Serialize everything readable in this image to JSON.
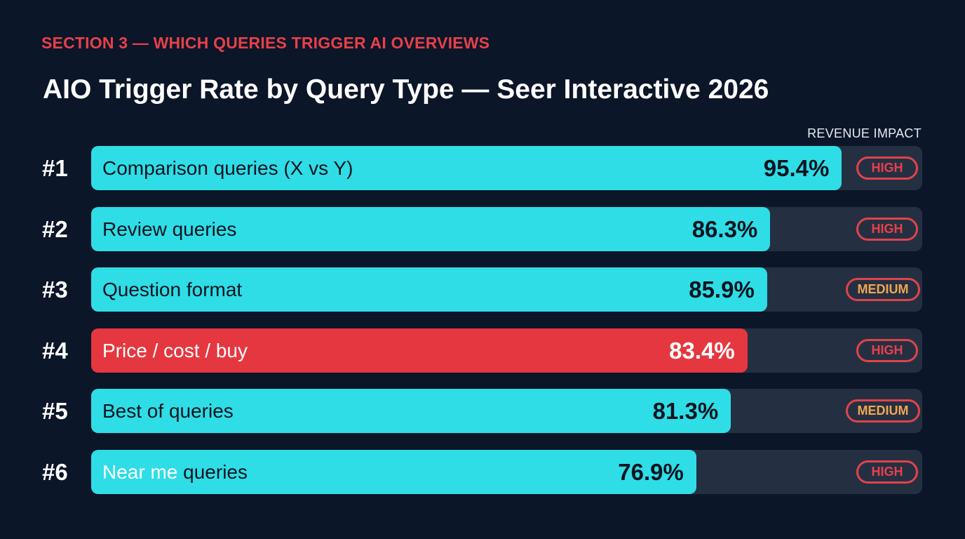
{
  "header": {
    "section_label": "SECTION 3 — WHICH QUERIES TRIGGER AI OVERVIEWS",
    "title": "AIO Trigger Rate by Query Type — Seer Interactive 2026",
    "column_header": "REVENUE IMPACT"
  },
  "colors": {
    "background": "#0b1628",
    "track": "#243041",
    "bar_default": "#2fdde6",
    "bar_highlight": "#e5373f",
    "badge_border": "#e0434c",
    "impact_high": "#e8404a",
    "impact_medium": "#f2a553"
  },
  "chart_data": {
    "type": "bar",
    "orientation": "horizontal",
    "title": "AIO Trigger Rate by Query Type — Seer Interactive 2026",
    "xlim": [
      0,
      100
    ],
    "unit": "%",
    "grid": false,
    "rows": [
      {
        "rank": "#1",
        "label": "Comparison queries (X vs Y)",
        "value": 95.4,
        "value_label": "95.4%",
        "impact": "HIGH",
        "highlight": false
      },
      {
        "rank": "#2",
        "label": "Review queries",
        "value": 86.3,
        "value_label": "86.3%",
        "impact": "HIGH",
        "highlight": false
      },
      {
        "rank": "#3",
        "label": "Question format",
        "value": 85.9,
        "value_label": "85.9%",
        "impact": "MEDIUM",
        "highlight": false
      },
      {
        "rank": "#4",
        "label": "Price / cost / buy",
        "value": 83.4,
        "value_label": "83.4%",
        "impact": "HIGH",
        "highlight": true
      },
      {
        "rank": "#5",
        "label": "Best of queries",
        "value": 81.3,
        "value_label": "81.3%",
        "impact": "MEDIUM",
        "highlight": false
      },
      {
        "rank": "#6",
        "label_highlight": "Near me",
        "label": "queries",
        "value": 76.9,
        "value_label": "76.9%",
        "impact": "HIGH",
        "highlight": false
      }
    ]
  }
}
